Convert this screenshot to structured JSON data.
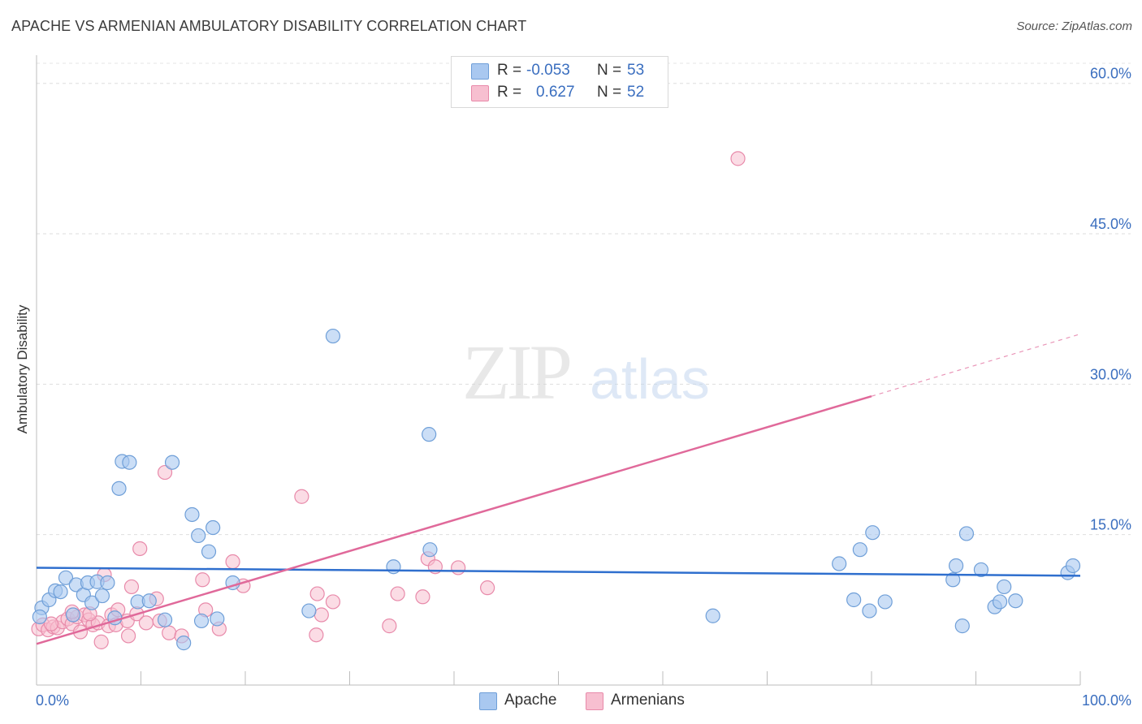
{
  "header": {
    "title": "APACHE VS ARMENIAN AMBULATORY DISABILITY CORRELATION CHART",
    "source": "Source: ZipAtlas.com"
  },
  "watermark": {
    "zip": "ZIP",
    "atlas": "atlas"
  },
  "legend_top": {
    "rows": [
      {
        "r_label": "R =",
        "r_value": "-0.053",
        "n_label": "N =",
        "n_value": "53",
        "color": "#a9c8f0"
      },
      {
        "r_label": "R =",
        "r_value": "0.627",
        "n_label": "N =",
        "n_value": "52",
        "color": "#f7bfd0"
      }
    ]
  },
  "legend_bottom": {
    "items": [
      "Apache",
      "Armenians"
    ]
  },
  "chart_data": {
    "type": "scatter",
    "title": "APACHE VS ARMENIAN AMBULATORY DISABILITY CORRELATION CHART",
    "xlabel": "",
    "ylabel": "Ambulatory Disability",
    "xlim": [
      0,
      100
    ],
    "ylim": [
      0,
      62
    ],
    "x_tick_labels": [
      "0.0%",
      "100.0%"
    ],
    "y_ticks": [
      15,
      30,
      45,
      60
    ],
    "y_tick_labels": [
      "15.0%",
      "30.0%",
      "45.0%",
      "60.0%"
    ],
    "grid": true,
    "colors": {
      "apache_fill": "#a9c8f0",
      "apache_stroke": "#6f9fd8",
      "apache_line": "#2f6fce",
      "armenian_fill": "#f7bfd0",
      "armenian_stroke": "#e88aaa",
      "armenian_line": "#e0699a",
      "tick_label": "#3a6ebf"
    },
    "series": [
      {
        "name": "Apache",
        "r": -0.053,
        "n": 53,
        "trend": {
          "x": [
            0,
            100
          ],
          "y": [
            11.7,
            10.9
          ]
        },
        "points": [
          [
            0.5,
            7.7
          ],
          [
            0.3,
            6.8
          ],
          [
            1.2,
            8.5
          ],
          [
            1.8,
            9.4
          ],
          [
            2.3,
            9.3
          ],
          [
            2.8,
            10.7
          ],
          [
            3.5,
            7.0
          ],
          [
            3.8,
            10.0
          ],
          [
            4.5,
            9.0
          ],
          [
            4.9,
            10.2
          ],
          [
            5.3,
            8.2
          ],
          [
            5.8,
            10.3
          ],
          [
            6.3,
            8.9
          ],
          [
            6.8,
            10.2
          ],
          [
            7.5,
            6.7
          ],
          [
            7.9,
            19.6
          ],
          [
            8.2,
            22.3
          ],
          [
            8.9,
            22.2
          ],
          [
            9.7,
            8.3
          ],
          [
            10.8,
            8.4
          ],
          [
            12.3,
            6.5
          ],
          [
            13.0,
            22.2
          ],
          [
            14.1,
            4.2
          ],
          [
            14.9,
            17.0
          ],
          [
            15.5,
            14.9
          ],
          [
            15.8,
            6.4
          ],
          [
            16.5,
            13.3
          ],
          [
            16.9,
            15.7
          ],
          [
            17.3,
            6.6
          ],
          [
            18.8,
            10.2
          ],
          [
            26.1,
            7.4
          ],
          [
            28.4,
            34.8
          ],
          [
            34.2,
            11.8
          ],
          [
            37.6,
            25.0
          ],
          [
            37.7,
            13.5
          ],
          [
            64.8,
            6.9
          ],
          [
            76.9,
            12.1
          ],
          [
            78.3,
            8.5
          ],
          [
            78.9,
            13.5
          ],
          [
            79.8,
            7.4
          ],
          [
            80.1,
            15.2
          ],
          [
            81.3,
            8.3
          ],
          [
            87.8,
            10.5
          ],
          [
            88.1,
            11.9
          ],
          [
            88.7,
            5.9
          ],
          [
            89.1,
            15.1
          ],
          [
            90.5,
            11.5
          ],
          [
            91.8,
            7.8
          ],
          [
            92.3,
            8.3
          ],
          [
            92.7,
            9.8
          ],
          [
            93.8,
            8.4
          ],
          [
            98.8,
            11.2
          ],
          [
            99.3,
            11.9
          ]
        ]
      },
      {
        "name": "Armenians",
        "r": 0.627,
        "n": 52,
        "trend": {
          "x": [
            0,
            80
          ],
          "y": [
            4.1,
            28.8
          ]
        },
        "trend_dashed": {
          "x": [
            80,
            100
          ],
          "y": [
            28.8,
            35.0
          ]
        },
        "points": [
          [
            0.2,
            5.6
          ],
          [
            0.6,
            6.0
          ],
          [
            1.1,
            5.5
          ],
          [
            1.6,
            5.8
          ],
          [
            2.0,
            5.7
          ],
          [
            2.5,
            6.3
          ],
          [
            3.0,
            6.6
          ],
          [
            3.4,
            6.1
          ],
          [
            3.9,
            6.8
          ],
          [
            4.2,
            5.3
          ],
          [
            4.6,
            7.0
          ],
          [
            5.0,
            6.5
          ],
          [
            5.4,
            6.0
          ],
          [
            5.9,
            6.2
          ],
          [
            6.2,
            4.3
          ],
          [
            6.5,
            11.0
          ],
          [
            6.9,
            5.9
          ],
          [
            7.2,
            7.0
          ],
          [
            7.6,
            6.0
          ],
          [
            7.8,
            7.5
          ],
          [
            8.7,
            6.4
          ],
          [
            8.8,
            4.9
          ],
          [
            9.1,
            9.8
          ],
          [
            9.6,
            7.1
          ],
          [
            9.9,
            13.6
          ],
          [
            10.5,
            6.2
          ],
          [
            11.5,
            8.6
          ],
          [
            11.8,
            6.4
          ],
          [
            12.3,
            21.2
          ],
          [
            12.7,
            5.2
          ],
          [
            13.9,
            4.9
          ],
          [
            15.9,
            10.5
          ],
          [
            16.2,
            7.5
          ],
          [
            17.5,
            5.6
          ],
          [
            18.8,
            12.3
          ],
          [
            19.8,
            9.9
          ],
          [
            25.4,
            18.8
          ],
          [
            26.9,
            9.1
          ],
          [
            26.8,
            5.0
          ],
          [
            27.3,
            7.0
          ],
          [
            28.4,
            8.3
          ],
          [
            33.8,
            5.9
          ],
          [
            34.6,
            9.1
          ],
          [
            37.0,
            8.8
          ],
          [
            37.5,
            12.6
          ],
          [
            38.2,
            11.8
          ],
          [
            40.4,
            11.7
          ],
          [
            43.2,
            9.7
          ],
          [
            67.2,
            52.5
          ],
          [
            3.4,
            7.3
          ],
          [
            5.1,
            7.1
          ],
          [
            1.4,
            6.1
          ]
        ]
      }
    ]
  }
}
